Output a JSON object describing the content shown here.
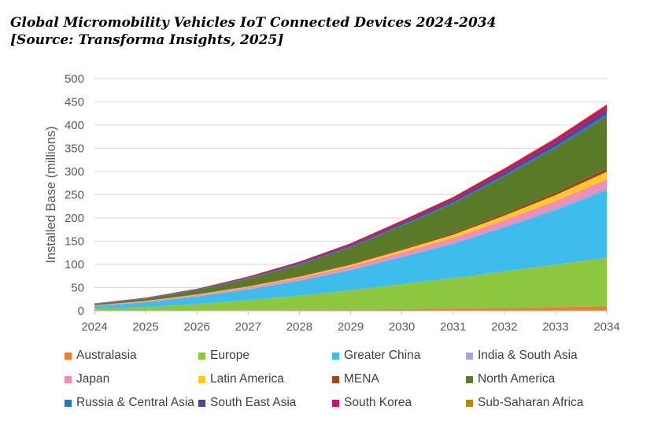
{
  "title_line1": "Global Micromobility Vehicles IoT Connected Devices 2024-2034",
  "title_line2": "[Source: Transforma Insights, 2025]",
  "chart_data": {
    "type": "area",
    "stacked": true,
    "ylabel": "Installed Base (millions)",
    "xlabel": "",
    "ylim": [
      0,
      500
    ],
    "yticks": [
      0,
      50,
      100,
      150,
      200,
      250,
      300,
      350,
      400,
      450,
      500
    ],
    "grid": true,
    "legend_position": "bottom",
    "x": [
      "2024",
      "2025",
      "2026",
      "2027",
      "2028",
      "2029",
      "2030",
      "2031",
      "2032",
      "2033",
      "2034"
    ],
    "series": [
      {
        "name": "Australasia",
        "color": "#ED7D31",
        "values": [
          0.2,
          0.5,
          0.8,
          1.2,
          1.8,
          2.6,
          3.6,
          4.8,
          6.2,
          7.8,
          9.5
        ]
      },
      {
        "name": "Europe",
        "color": "#8DC63F",
        "values": [
          4.5,
          8,
          14,
          22,
          31,
          42,
          54,
          66,
          79,
          92,
          105
        ]
      },
      {
        "name": "Greater China",
        "color": "#3EBCEB",
        "values": [
          5.5,
          10,
          16,
          23,
          32,
          43,
          58,
          73,
          94,
          117,
          145
        ]
      },
      {
        "name": "India & South Asia",
        "color": "#A5A5D8",
        "values": [
          0.2,
          0.3,
          0.5,
          0.8,
          1.1,
          1.6,
          2.2,
          3,
          3.8,
          4.8,
          6
        ]
      },
      {
        "name": "Japan",
        "color": "#F28EB6",
        "values": [
          1,
          1.8,
          2.7,
          3.8,
          5,
          6.5,
          8,
          10,
          12.5,
          15,
          18
        ]
      },
      {
        "name": "Latin America",
        "color": "#FFC928",
        "values": [
          0.3,
          0.6,
          1,
          1.6,
          2.4,
          3.4,
          5,
          7,
          9.5,
          12.5,
          16
        ]
      },
      {
        "name": "MENA",
        "color": "#A0441C",
        "values": [
          0.2,
          0.3,
          0.5,
          0.8,
          1.2,
          1.7,
          2.4,
          3.2,
          4.2,
          5.4,
          7
        ]
      },
      {
        "name": "North America",
        "color": "#5A7A2A",
        "values": [
          3,
          5,
          9,
          16,
          25,
          36,
          50,
          64,
          80,
          96,
          112
        ]
      },
      {
        "name": "Russia & Central Asia",
        "color": "#2E75B6",
        "values": [
          0.2,
          0.3,
          0.5,
          0.8,
          1.1,
          1.5,
          2,
          2.6,
          3.4,
          4.2,
          5.2
        ]
      },
      {
        "name": "South East Asia",
        "color": "#4B4891",
        "values": [
          0.4,
          0.7,
          1.1,
          1.7,
          2.4,
          3.2,
          4.2,
          5.2,
          6.4,
          7.8,
          9.5
        ]
      },
      {
        "name": "South Korea",
        "color": "#CC1166",
        "values": [
          0.5,
          0.9,
          1.4,
          2,
          2.8,
          3.7,
          4.7,
          5.8,
          7,
          8.4,
          10
        ]
      },
      {
        "name": "Sub-Saharan Africa",
        "color": "#B8860B",
        "values": [
          0.1,
          0.1,
          0.2,
          0.3,
          0.4,
          0.5,
          0.7,
          0.9,
          1.2,
          1.5,
          2
        ]
      }
    ]
  }
}
